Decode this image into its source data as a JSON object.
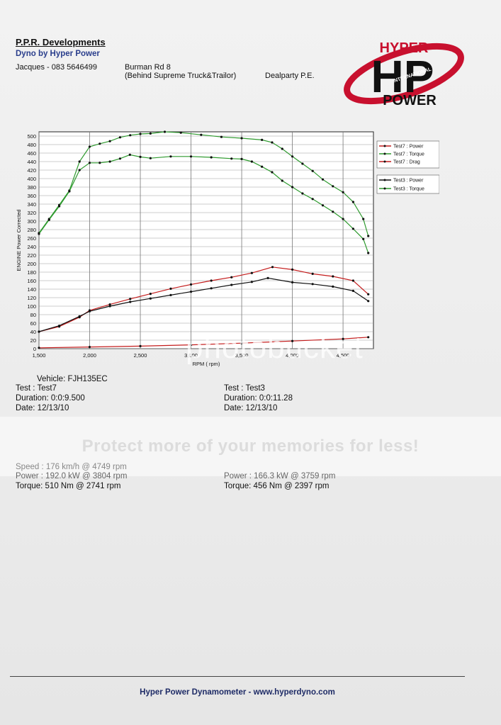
{
  "header": {
    "company": "P.P.R. Developments",
    "subtitle": "Dyno by Hyper Power",
    "contact": "Jacques - 083 5646499",
    "address_line1": "Burman Rd 8",
    "address_line2": "(Behind Supreme Truck&Trailor)",
    "area": "Dealparty P.E."
  },
  "logo": {
    "top": "HYPER",
    "middle": "HP",
    "arc": "INTERNATIONAL",
    "bottom": "POWER"
  },
  "colors": {
    "red": "#c41c1c",
    "green": "#2e9a2e",
    "black": "#111111",
    "logo_red": "#c8102e"
  },
  "chart_data": {
    "type": "line",
    "xlabel": "RPM ( rpm)",
    "ylabel": "ENGINE Power Corrected",
    "xlim": [
      1500,
      4800
    ],
    "ylim": [
      0,
      510
    ],
    "xticks": [
      1500,
      2000,
      2500,
      3000,
      3500,
      4000,
      4500
    ],
    "xtick_labels": [
      "1,500",
      "2,000",
      "2,500",
      "3,000",
      "3,500",
      "4,000",
      "4,500"
    ],
    "yticks": [
      0,
      20,
      40,
      60,
      80,
      100,
      120,
      140,
      160,
      180,
      200,
      220,
      240,
      260,
      280,
      300,
      320,
      340,
      360,
      380,
      400,
      420,
      440,
      460,
      480,
      500
    ],
    "grid": true,
    "legend_position": "right",
    "series": [
      {
        "name": "Test7 : Power",
        "color": "#c41c1c",
        "x": [
          1500,
          1700,
          1900,
          2000,
          2200,
          2400,
          2600,
          2800,
          3000,
          3200,
          3400,
          3600,
          3804,
          4000,
          4200,
          4400,
          4600,
          4749
        ],
        "y": [
          40,
          52,
          74,
          90,
          104,
          117,
          129,
          141,
          151,
          160,
          168,
          178,
          192,
          186,
          176,
          170,
          160,
          128
        ]
      },
      {
        "name": "Test7 : Torque",
        "color": "#2e9a2e",
        "x": [
          1500,
          1600,
          1700,
          1800,
          1900,
          2000,
          2100,
          2200,
          2300,
          2400,
          2500,
          2600,
          2741,
          2900,
          3100,
          3300,
          3500,
          3700,
          3800,
          3900,
          4000,
          4100,
          4200,
          4300,
          4400,
          4500,
          4600,
          4700,
          4749
        ],
        "y": [
          272,
          305,
          338,
          372,
          440,
          475,
          482,
          488,
          497,
          502,
          505,
          506,
          510,
          508,
          503,
          498,
          495,
          491,
          485,
          470,
          452,
          435,
          418,
          398,
          382,
          368,
          345,
          305,
          265
        ]
      },
      {
        "name": "Test7 : Drag",
        "color": "#c41c1c",
        "x": [
          1500,
          2000,
          2500,
          3000,
          3500,
          4000,
          4500,
          4749
        ],
        "y": [
          2,
          4,
          6,
          9,
          13,
          18,
          23,
          27
        ]
      },
      {
        "name": "Test3 : Power",
        "color": "#111111",
        "x": [
          1500,
          1700,
          1900,
          2000,
          2200,
          2400,
          2600,
          2800,
          3000,
          3200,
          3400,
          3600,
          3759,
          4000,
          4200,
          4400,
          4600,
          4749
        ],
        "y": [
          40,
          54,
          76,
          88,
          100,
          110,
          118,
          126,
          134,
          142,
          150,
          157,
          166,
          156,
          152,
          146,
          136,
          112
        ]
      },
      {
        "name": "Test3 : Torque",
        "color": "#2e9a2e",
        "x": [
          1500,
          1600,
          1700,
          1800,
          1900,
          2000,
          2100,
          2200,
          2300,
          2397,
          2500,
          2600,
          2800,
          3000,
          3200,
          3400,
          3500,
          3600,
          3700,
          3800,
          3900,
          4000,
          4100,
          4200,
          4300,
          4400,
          4500,
          4600,
          4700,
          4749
        ],
        "y": [
          270,
          303,
          335,
          370,
          420,
          437,
          437,
          440,
          447,
          456,
          451,
          448,
          452,
          452,
          450,
          447,
          446,
          440,
          428,
          415,
          395,
          380,
          365,
          352,
          337,
          322,
          305,
          282,
          258,
          225
        ]
      }
    ]
  },
  "vehicle": "Vehicle: FJH135EC",
  "test1": {
    "test": "Test   : Test7",
    "duration": "Duration: 0:0:9.500",
    "date": "Date: 12/13/10"
  },
  "test2": {
    "test": "Test   : Test3",
    "duration": "Duration: 0:0:11.28",
    "date": "Date: 12/13/10"
  },
  "results": {
    "speed": "Speed : 176 km/h @ 4749 rpm",
    "power1": "Power : 192.0 kW @ 3804 rpm",
    "torque1": "Torque: 510 Nm @ 2741 rpm",
    "power2": "Power : 166.3 kW @ 3759 rpm",
    "torque2": "Torque: 456 Nm @ 2397 rpm"
  },
  "watermark": "photobucket",
  "banner": "Protect more of your memories for less!",
  "footer": "Hyper Power Dynamometer  -  www.hyperdyno.com"
}
